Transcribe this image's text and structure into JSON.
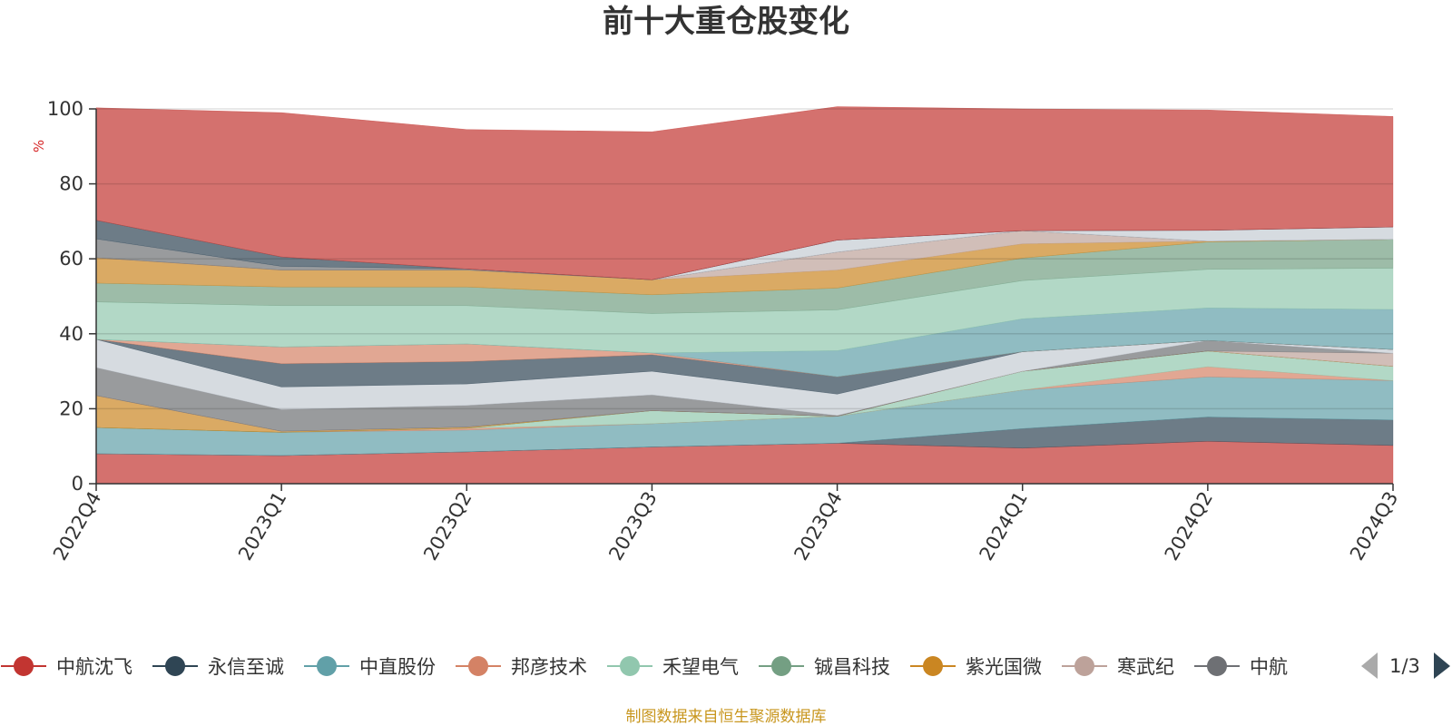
{
  "chart_data": {
    "type": "area",
    "stacked": true,
    "title": "前十大重仓股变化",
    "ylabel": "%",
    "ylim": [
      0,
      100
    ],
    "yticks": [
      "0",
      "20",
      "40",
      "60",
      "80",
      "100"
    ],
    "categories": [
      "2022Q4",
      "2023Q1",
      "2023Q2",
      "2023Q3",
      "2023Q4",
      "2024Q1",
      "2024Q2",
      "2024Q3"
    ],
    "grid": true,
    "colors": {
      "axis": "#333333",
      "grid": "#e0e0e0",
      "ylabel": "#d62728",
      "source": "#c8961e",
      "pager_active": "#2f4554",
      "pager_inactive": "#aaaaaa"
    },
    "series": [
      {
        "name": "中航沈飞",
        "color": "#c23531",
        "values": [
          8,
          7.5,
          8.5,
          9.8,
          10.8,
          9.5,
          11.3,
          10.2
        ]
      },
      {
        "name": "永信至诚",
        "color": "#2f4554",
        "values": [
          0,
          0,
          0,
          0,
          0,
          5.2,
          6.5,
          6.8
        ]
      },
      {
        "name": "中直股份",
        "color": "#61a0a8",
        "values": [
          7,
          6.2,
          5.8,
          6.2,
          7.2,
          10.3,
          10.7,
          10.5
        ]
      },
      {
        "name": "邦彦技术",
        "color": "#d48265",
        "values": [
          0,
          0,
          0.5,
          0,
          0,
          0,
          2.7,
          0
        ]
      },
      {
        "name": "禾望电气",
        "color": "#91c7ae",
        "values": [
          0,
          0,
          0,
          3.5,
          0,
          5,
          4.2,
          3.8
        ]
      },
      {
        "name": "铖昌科技",
        "color": "#749f83",
        "values": [
          0,
          0,
          0,
          0,
          0,
          0,
          0,
          0
        ]
      },
      {
        "name": "紫光国微",
        "color": "#ca8622",
        "values": [
          8.5,
          0.3,
          0.3,
          0,
          0,
          0,
          0,
          0
        ]
      },
      {
        "name": "寒武纪",
        "color": "#bda29a",
        "values": [
          0,
          0,
          0,
          0,
          0,
          0,
          0,
          3.5
        ]
      },
      {
        "name": "中航",
        "color": "#6e7074",
        "values": [
          7.5,
          5.8,
          5.8,
          4.2,
          0.2,
          0,
          2.8,
          0
        ]
      },
      {
        "name": "",
        "color": "#c4ccd3",
        "values": [
          7.5,
          6,
          5.7,
          6.3,
          5.7,
          5.2,
          0,
          1
        ]
      },
      {
        "name": "",
        "color": "#2f4554",
        "values": [
          0,
          6.2,
          6,
          4.4,
          4.6,
          0,
          0,
          0
        ]
      },
      {
        "name": "",
        "color": "#d48265",
        "values": [
          0,
          4.5,
          4.7,
          0.5,
          0,
          0,
          0,
          0
        ]
      },
      {
        "name": "",
        "color": "#61a0a8",
        "values": [
          0,
          0,
          0,
          0,
          7,
          8.8,
          8.7,
          10.7
        ]
      },
      {
        "name": "",
        "color": "#91c7ae",
        "values": [
          10,
          11,
          10.2,
          10.5,
          10.9,
          10.2,
          10.3,
          11
        ]
      },
      {
        "name": "",
        "color": "#749f83",
        "values": [
          5,
          5,
          5,
          5,
          5.8,
          6,
          7.3,
          7.7
        ]
      },
      {
        "name": "",
        "color": "#ca8622",
        "values": [
          6.8,
          4.5,
          4.5,
          4,
          4.8,
          3.8,
          0.2,
          0
        ]
      },
      {
        "name": "",
        "color": "#bda29a",
        "values": [
          0,
          0,
          0,
          0,
          4.8,
          3.5,
          0,
          0
        ]
      },
      {
        "name": "",
        "color": "#6e7074",
        "values": [
          5,
          1,
          0.3,
          0,
          0,
          0,
          0,
          0
        ]
      },
      {
        "name": "",
        "color": "#c4ccd3",
        "values": [
          0,
          0,
          0,
          0,
          3.2,
          0,
          2.9,
          3.3
        ]
      },
      {
        "name": "",
        "color": "#2f4554",
        "values": [
          5,
          2.5,
          0,
          0,
          0,
          0,
          0,
          0
        ]
      },
      {
        "name": "",
        "color": "#c23531",
        "values": [
          30,
          38.5,
          37.2,
          39.5,
          35.6,
          32.5,
          32.1,
          29.5
        ]
      }
    ]
  },
  "legend": {
    "items": [
      "中航沈飞",
      "永信至诚",
      "中直股份",
      "邦彦技术",
      "禾望电气",
      "铖昌科技",
      "紫光国微",
      "寒武纪",
      "中航"
    ],
    "page": "1/3"
  },
  "footer": {
    "source": "制图数据来自恒生聚源数据库"
  }
}
